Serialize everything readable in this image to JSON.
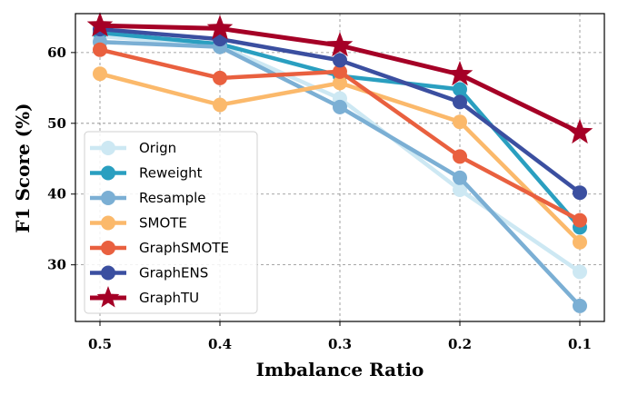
{
  "chart_data": {
    "type": "line",
    "title": "",
    "xlabel": "Imbalance Ratio",
    "ylabel": "F1 Score (%)",
    "categories": [
      "0.5",
      "0.4",
      "0.3",
      "0.2",
      "0.1"
    ],
    "ylim": [
      22,
      65.5
    ],
    "yticks": [
      30,
      40,
      50,
      60
    ],
    "grid": true,
    "legend_position": "lower-left",
    "series": [
      {
        "name": "Orign",
        "color": "#cde8f3",
        "marker": "circle",
        "values": [
          62.3,
          61.0,
          53.5,
          40.6,
          29.0
        ]
      },
      {
        "name": "Reweight",
        "color": "#2a9fc0",
        "marker": "circle",
        "values": [
          62.8,
          61.2,
          56.7,
          54.8,
          35.3
        ]
      },
      {
        "name": "Resample",
        "color": "#7bafd4",
        "marker": "circle",
        "values": [
          61.5,
          60.8,
          52.3,
          42.3,
          24.2
        ]
      },
      {
        "name": "SMOTE",
        "color": "#fbb96b",
        "marker": "circle",
        "values": [
          57.0,
          52.6,
          55.7,
          50.2,
          33.2
        ]
      },
      {
        "name": "GraphSMOTE",
        "color": "#e9603f",
        "marker": "circle",
        "values": [
          60.4,
          56.4,
          57.3,
          45.3,
          36.3
        ]
      },
      {
        "name": "GraphENS",
        "color": "#3b4fa0",
        "marker": "circle",
        "values": [
          63.3,
          61.9,
          58.9,
          53.0,
          40.2
        ]
      },
      {
        "name": "GraphTU",
        "color": "#a50026",
        "marker": "star",
        "values": [
          63.8,
          63.4,
          61.0,
          56.9,
          48.7
        ]
      }
    ]
  }
}
